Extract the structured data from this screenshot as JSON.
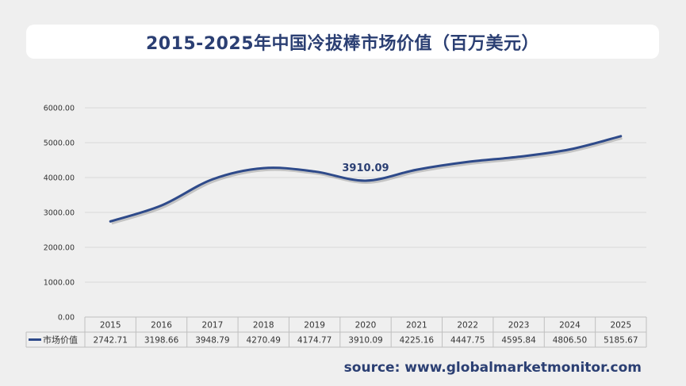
{
  "header": {
    "title": "2015-2025年中国冷拔棒市场价值（百万美元）"
  },
  "footer": {
    "source": "source: www.globalmarketmonitor.com"
  },
  "colors": {
    "line": "#2e4a8a",
    "title": "#2b3f73",
    "grid": "#d9d9d9",
    "text": "#333333"
  },
  "chart_data": {
    "type": "line",
    "categories": [
      "2015",
      "2016",
      "2017",
      "2018",
      "2019",
      "2020",
      "2021",
      "2022",
      "2023",
      "2024",
      "2025"
    ],
    "series": [
      {
        "name": "市场价值",
        "values": [
          2742.71,
          3198.66,
          3948.79,
          4270.49,
          4174.77,
          3910.09,
          4225.16,
          4447.75,
          4595.84,
          4806.5,
          5185.67
        ],
        "value_labels": [
          "2742.71",
          "3198.66",
          "3948.79",
          "4270.49",
          "4174.77",
          "3910.09",
          "4225.16",
          "4447.75",
          "4595.84",
          "4806.50",
          "5185.67"
        ]
      }
    ],
    "y_ticks": [
      "0.00",
      "1000.00",
      "2000.00",
      "3000.00",
      "4000.00",
      "5000.00",
      "6000.00"
    ],
    "ylim": [
      0,
      6000
    ],
    "annotation": {
      "category": "2020",
      "text": "3910.09"
    },
    "grid": true,
    "legend": "bottom-left data table"
  }
}
